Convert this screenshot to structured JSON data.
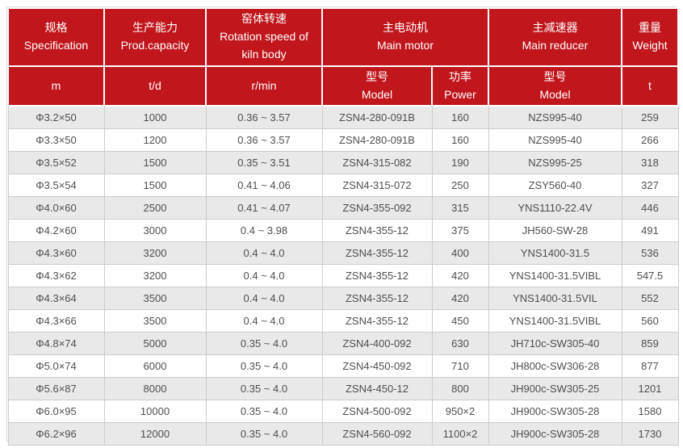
{
  "colors": {
    "header_bg": "#c0161c",
    "header_text": "#ffffff",
    "row_odd_bg": "#e9e9e9",
    "row_even_bg": "#ffffff",
    "grid_line": "#cccccc",
    "body_text": "#4f4f4f"
  },
  "table": {
    "header": {
      "groups": [
        {
          "zh": "规格",
          "en": "Specification"
        },
        {
          "zh": "生产能力",
          "en": "Prod.capacity"
        },
        {
          "zh": "窑体转速",
          "en": "Rotation speed of kiln body"
        },
        {
          "zh": "主电动机",
          "en": "Main motor"
        },
        {
          "zh": "主减速器",
          "en": "Main reducer"
        },
        {
          "zh": "重量",
          "en": "Weight"
        }
      ],
      "sub": [
        {
          "zh": "",
          "en": "m"
        },
        {
          "zh": "",
          "en": "t/d"
        },
        {
          "zh": "",
          "en": "r/min"
        },
        {
          "zh": "型号",
          "en": "Model"
        },
        {
          "zh": "功率",
          "en": "Power"
        },
        {
          "zh": "型号",
          "en": "Model"
        },
        {
          "zh": "",
          "en": "t"
        }
      ]
    },
    "column_keys": [
      "specification",
      "capacity",
      "rotation-speed",
      "motor-model",
      "motor-power",
      "reducer-model",
      "weight"
    ],
    "rows": [
      [
        "Φ3.2×50",
        "1000",
        "0.36 ~ 3.57",
        "ZSN4-280-091B",
        "160",
        "NZS995-40",
        "259"
      ],
      [
        "Φ3.3×50",
        "1200",
        "0.36 ~ 3.57",
        "ZSN4-280-091B",
        "160",
        "NZS995-40",
        "266"
      ],
      [
        "Φ3.5×52",
        "1500",
        "0.35 ~ 3.51",
        "ZSN4-315-082",
        "190",
        "NZS995-25",
        "318"
      ],
      [
        "Φ3.5×54",
        "1500",
        "0.41 ~ 4.06",
        "ZSN4-315-072",
        "250",
        "ZSY560-40",
        "327"
      ],
      [
        "Φ4.0×60",
        "2500",
        "0.41 ~ 4.07",
        "ZSN4-355-092",
        "315",
        "YNS1110-22.4V",
        "446"
      ],
      [
        "Φ4.2×60",
        "3000",
        "0.4 ~ 3.98",
        "ZSN4-355-12",
        "375",
        "JH560-SW-28",
        "491"
      ],
      [
        "Φ4.3×60",
        "3200",
        "0.4 ~ 4.0",
        "ZSN4-355-12",
        "400",
        "YNS1400-31.5",
        "536"
      ],
      [
        "Φ4.3×62",
        "3200",
        "0.4 ~ 4.0",
        "ZSN4-355-12",
        "420",
        "YNS1400-31.5VIBL",
        "547.5"
      ],
      [
        "Φ4.3×64",
        "3500",
        "0.4 ~ 4.0",
        "ZSN4-355-12",
        "420",
        "YNS1400-31.5VIL",
        "552"
      ],
      [
        "Φ4.3×66",
        "3500",
        "0.4 ~ 4.0",
        "ZSN4-355-12",
        "450",
        "YNS1400-31.5VIBL",
        "560"
      ],
      [
        "Φ4.8×74",
        "5000",
        "0.35 ~ 4.0",
        "ZSN4-400-092",
        "630",
        "JH710c-SW305-40",
        "859"
      ],
      [
        "Φ5.0×74",
        "6000",
        "0.35 ~ 4.0",
        "ZSN4-450-092",
        "710",
        "JH800c-SW306-28",
        "877"
      ],
      [
        "Φ5.6×87",
        "8000",
        "0.35 ~ 4.0",
        "ZSN4-450-12",
        "800",
        "JH900c-SW305-25",
        "1201"
      ],
      [
        "Φ6.0×95",
        "10000",
        "0.35 ~ 4.0",
        "ZSN4-500-092",
        "950×2",
        "JH900c-SW305-28",
        "1580"
      ],
      [
        "Φ6.2×96",
        "12000",
        "0.35 ~ 4.0",
        "ZSN4-560-092",
        "1100×2",
        "JH900c-SW305-28",
        "1730"
      ]
    ]
  },
  "chart_data": {
    "type": "table",
    "title": "Rotary kiln technical specifications",
    "columns": [
      "规格 Specification (m)",
      "生产能力 Prod.capacity (t/d)",
      "窑体转速 Rotation speed of kiln body (r/min)",
      "主电动机 Main motor 型号 Model",
      "主电动机 Main motor 功率 Power",
      "主减速器 Main reducer 型号 Model",
      "重量 Weight (t)"
    ],
    "rows": [
      [
        "Φ3.2×50",
        1000,
        "0.36~3.57",
        "ZSN4-280-091B",
        "160",
        "NZS995-40",
        259
      ],
      [
        "Φ3.3×50",
        1200,
        "0.36~3.57",
        "ZSN4-280-091B",
        "160",
        "NZS995-40",
        266
      ],
      [
        "Φ3.5×52",
        1500,
        "0.35~3.51",
        "ZSN4-315-082",
        "190",
        "NZS995-25",
        318
      ],
      [
        "Φ3.5×54",
        1500,
        "0.41~4.06",
        "ZSN4-315-072",
        "250",
        "ZSY560-40",
        327
      ],
      [
        "Φ4.0×60",
        2500,
        "0.41~4.07",
        "ZSN4-355-092",
        "315",
        "YNS1110-22.4V",
        446
      ],
      [
        "Φ4.2×60",
        3000,
        "0.4~3.98",
        "ZSN4-355-12",
        "375",
        "JH560-SW-28",
        491
      ],
      [
        "Φ4.3×60",
        3200,
        "0.4~4.0",
        "ZSN4-355-12",
        "400",
        "YNS1400-31.5",
        536
      ],
      [
        "Φ4.3×62",
        3200,
        "0.4~4.0",
        "ZSN4-355-12",
        "420",
        "YNS1400-31.5VIBL",
        547.5
      ],
      [
        "Φ4.3×64",
        3500,
        "0.4~4.0",
        "ZSN4-355-12",
        "420",
        "YNS1400-31.5VIL",
        552
      ],
      [
        "Φ4.3×66",
        3500,
        "0.4~4.0",
        "ZSN4-355-12",
        "450",
        "YNS1400-31.5VIBL",
        560
      ],
      [
        "Φ4.8×74",
        5000,
        "0.35~4.0",
        "ZSN4-400-092",
        "630",
        "JH710c-SW305-40",
        859
      ],
      [
        "Φ5.0×74",
        6000,
        "0.35~4.0",
        "ZSN4-450-092",
        "710",
        "JH800c-SW306-28",
        877
      ],
      [
        "Φ5.6×87",
        8000,
        "0.35~4.0",
        "ZSN4-450-12",
        "800",
        "JH900c-SW305-25",
        1201
      ],
      [
        "Φ6.0×95",
        10000,
        "0.35~4.0",
        "ZSN4-500-092",
        "950×2",
        "JH900c-SW305-28",
        1580
      ],
      [
        "Φ6.2×96",
        12000,
        "0.35~4.0",
        "ZSN4-560-092",
        "1100×2",
        "JH900c-SW305-28",
        1730
      ]
    ]
  }
}
